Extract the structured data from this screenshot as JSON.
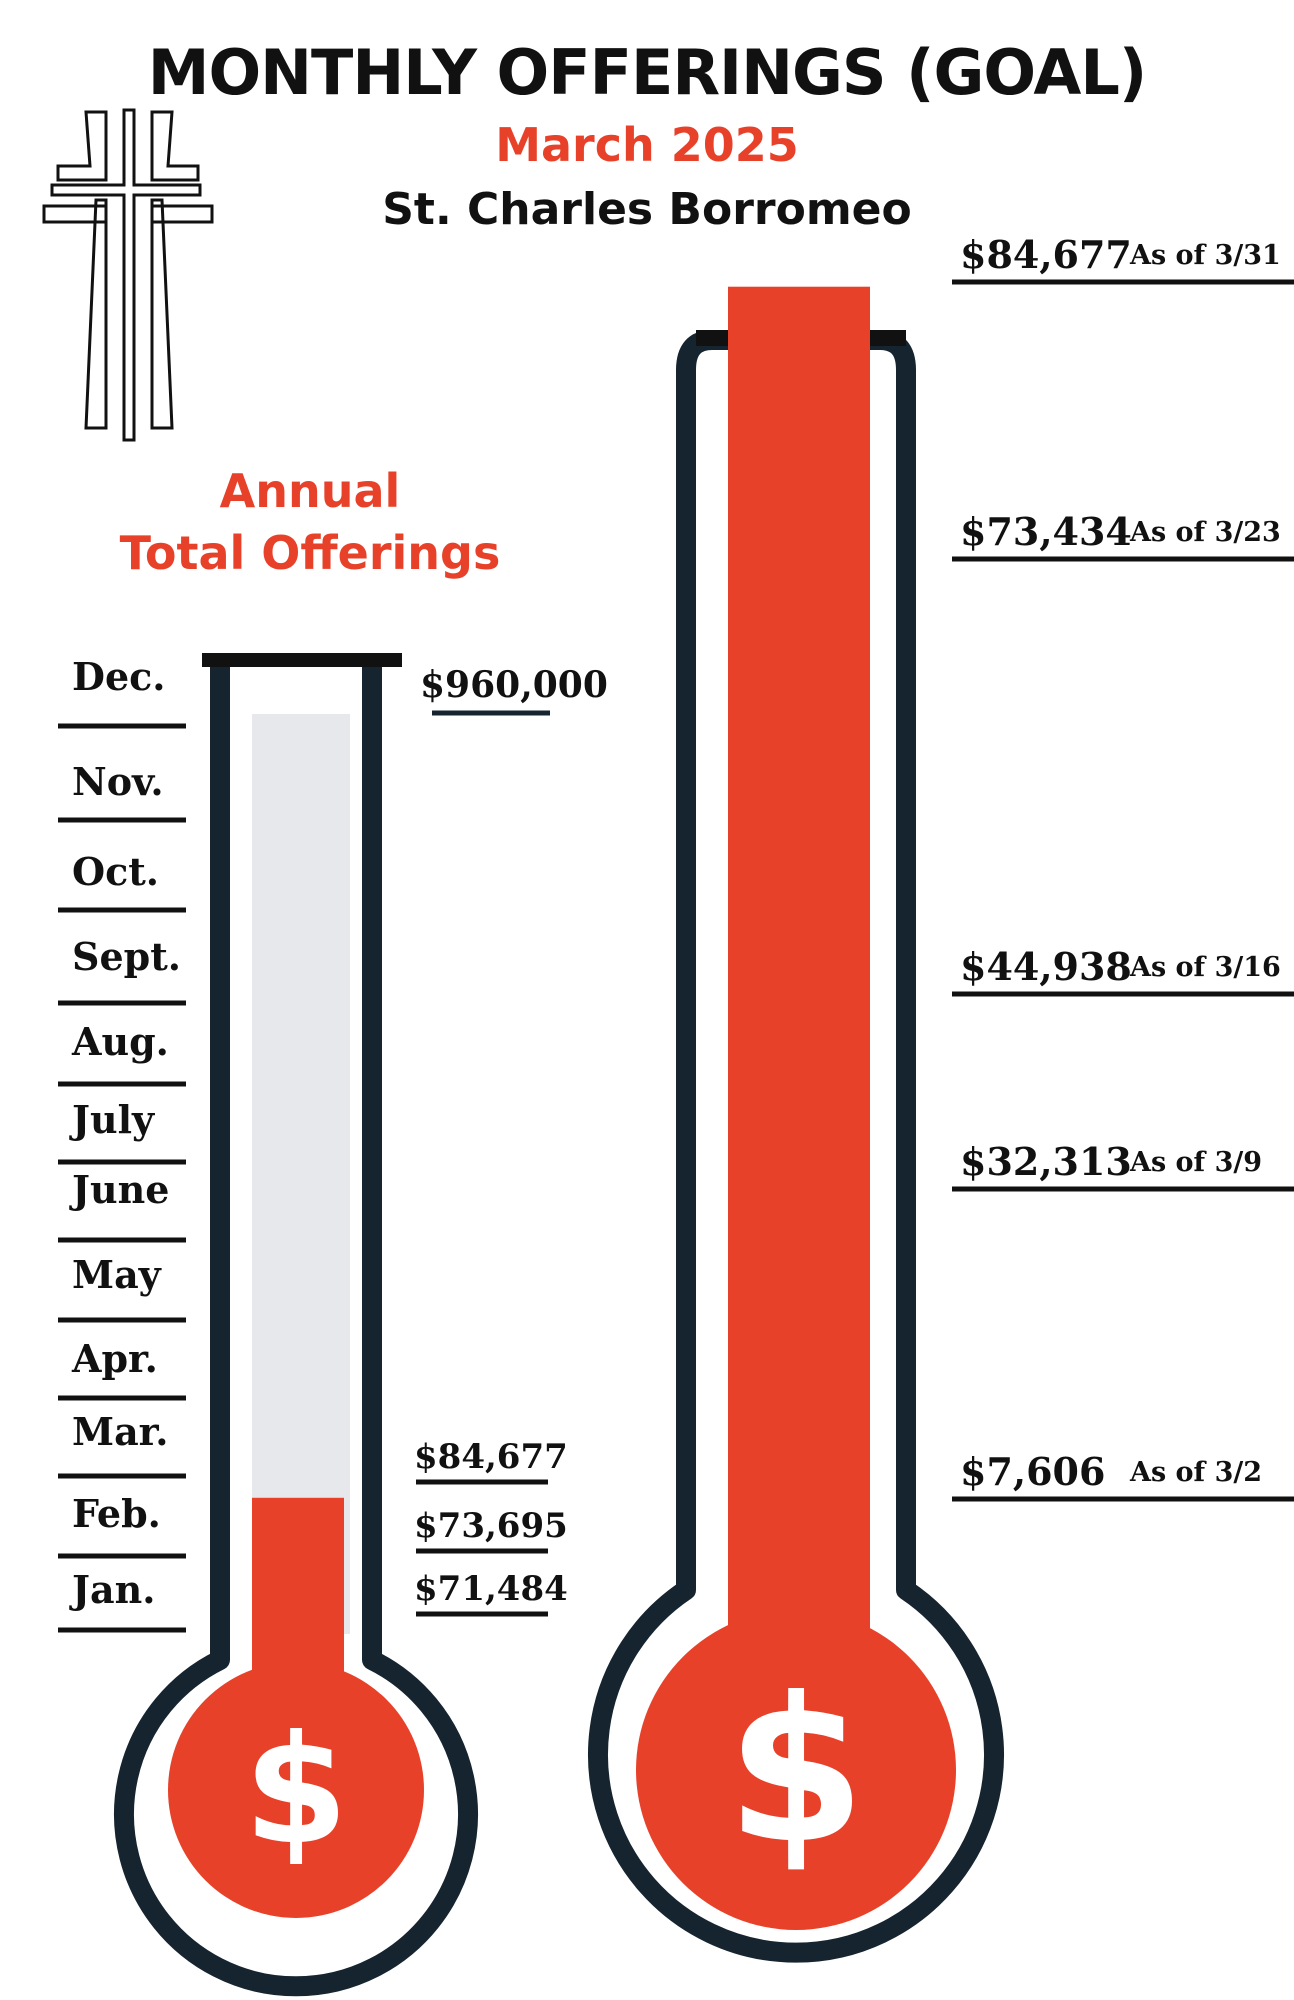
{
  "header": {
    "title": "MONTHLY OFFERINGS (GOAL)",
    "subtitle": "March 2025",
    "organization": "St. Charles Borromeo"
  },
  "annual": {
    "title_line1": "Annual",
    "title_line2": "Total Offerings"
  },
  "icons": {
    "logo": "cross-icon",
    "bulb": "dollar-sign-icon"
  },
  "colors": {
    "fill": "#e8412a",
    "empty_fill": "#e6e8eb",
    "outline": "#15242f",
    "text": "#111111"
  },
  "chart_data": [
    {
      "type": "thermometer",
      "name": "annual",
      "goal_label": "$960,000",
      "goal": 960000,
      "fill_value": 84677,
      "months": [
        "Dec.",
        "Nov.",
        "Oct.",
        "Sept.",
        "Aug.",
        "July",
        "June",
        "May",
        "Apr.",
        "Mar.",
        "Feb.",
        "Jan."
      ],
      "monthly_totals": [
        {
          "label": "$84,677",
          "value": 84677,
          "month": "Mar."
        },
        {
          "label": "$73,695",
          "value": 73695,
          "month": "Feb."
        },
        {
          "label": "$71,484",
          "value": 71484,
          "month": "Jan."
        }
      ],
      "bulb_symbol": "$"
    },
    {
      "type": "thermometer",
      "name": "monthly",
      "fill_fraction": 1.04,
      "ticks": [
        {
          "amount": "$84,677",
          "note": "As of 3/31",
          "value": 84677
        },
        {
          "amount": "$73,434",
          "note": "As of 3/23",
          "value": 73434
        },
        {
          "amount": "$44,938",
          "note": "As of 3/16",
          "value": 44938
        },
        {
          "amount": "$32,313",
          "note": "As of 3/9",
          "value": 32313
        },
        {
          "amount": "$7,606",
          "note": "As of 3/2",
          "value": 7606
        }
      ],
      "bulb_symbol": "$"
    }
  ]
}
